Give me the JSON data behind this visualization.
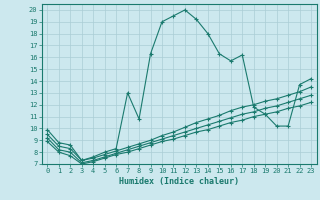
{
  "xlabel": "Humidex (Indice chaleur)",
  "background_color": "#cce8ee",
  "line_color": "#1a7a6e",
  "grid_color": "#aacdd5",
  "xlim": [
    -0.5,
    23.5
  ],
  "ylim": [
    7,
    20.5
  ],
  "yticks": [
    7,
    8,
    9,
    10,
    11,
    12,
    13,
    14,
    15,
    16,
    17,
    18,
    19,
    20
  ],
  "xticks": [
    0,
    1,
    2,
    3,
    4,
    5,
    6,
    7,
    8,
    9,
    10,
    11,
    12,
    13,
    14,
    15,
    16,
    17,
    18,
    19,
    20,
    21,
    22,
    23
  ],
  "line1_x": [
    0,
    1,
    2,
    3,
    4,
    5,
    6,
    7,
    8,
    9,
    10,
    11,
    12,
    13,
    14,
    15,
    16,
    17,
    18,
    19,
    20,
    21,
    22,
    23
  ],
  "line1_y": [
    9.9,
    8.8,
    8.6,
    7.3,
    7.6,
    8.0,
    8.3,
    13.0,
    10.8,
    16.3,
    19.0,
    19.5,
    20.0,
    19.2,
    18.0,
    16.3,
    15.7,
    16.2,
    11.8,
    11.2,
    10.2,
    10.2,
    13.7,
    14.2
  ],
  "line2_x": [
    0,
    1,
    2,
    3,
    4,
    5,
    6,
    7,
    8,
    9,
    10,
    11,
    12,
    13,
    14,
    15,
    16,
    17,
    18,
    19,
    20,
    21,
    22,
    23
  ],
  "line2_y": [
    9.5,
    8.5,
    8.3,
    7.3,
    7.5,
    7.8,
    8.1,
    8.4,
    8.7,
    9.0,
    9.4,
    9.7,
    10.1,
    10.5,
    10.8,
    11.1,
    11.5,
    11.8,
    12.0,
    12.3,
    12.5,
    12.8,
    13.1,
    13.5
  ],
  "line3_x": [
    0,
    1,
    2,
    3,
    4,
    5,
    6,
    7,
    8,
    9,
    10,
    11,
    12,
    13,
    14,
    15,
    16,
    17,
    18,
    19,
    20,
    21,
    22,
    23
  ],
  "line3_y": [
    9.2,
    8.2,
    8.0,
    7.1,
    7.3,
    7.6,
    7.9,
    8.2,
    8.5,
    8.8,
    9.1,
    9.4,
    9.7,
    10.0,
    10.3,
    10.6,
    10.9,
    11.2,
    11.4,
    11.7,
    11.9,
    12.2,
    12.5,
    12.8
  ],
  "line4_x": [
    0,
    1,
    2,
    3,
    4,
    5,
    6,
    7,
    8,
    9,
    10,
    11,
    12,
    13,
    14,
    15,
    16,
    17,
    18,
    19,
    20,
    21,
    22,
    23
  ],
  "line4_y": [
    8.9,
    8.0,
    7.7,
    7.0,
    7.2,
    7.5,
    7.8,
    8.0,
    8.3,
    8.6,
    8.9,
    9.1,
    9.4,
    9.7,
    9.9,
    10.2,
    10.5,
    10.7,
    11.0,
    11.2,
    11.4,
    11.7,
    11.9,
    12.2
  ]
}
